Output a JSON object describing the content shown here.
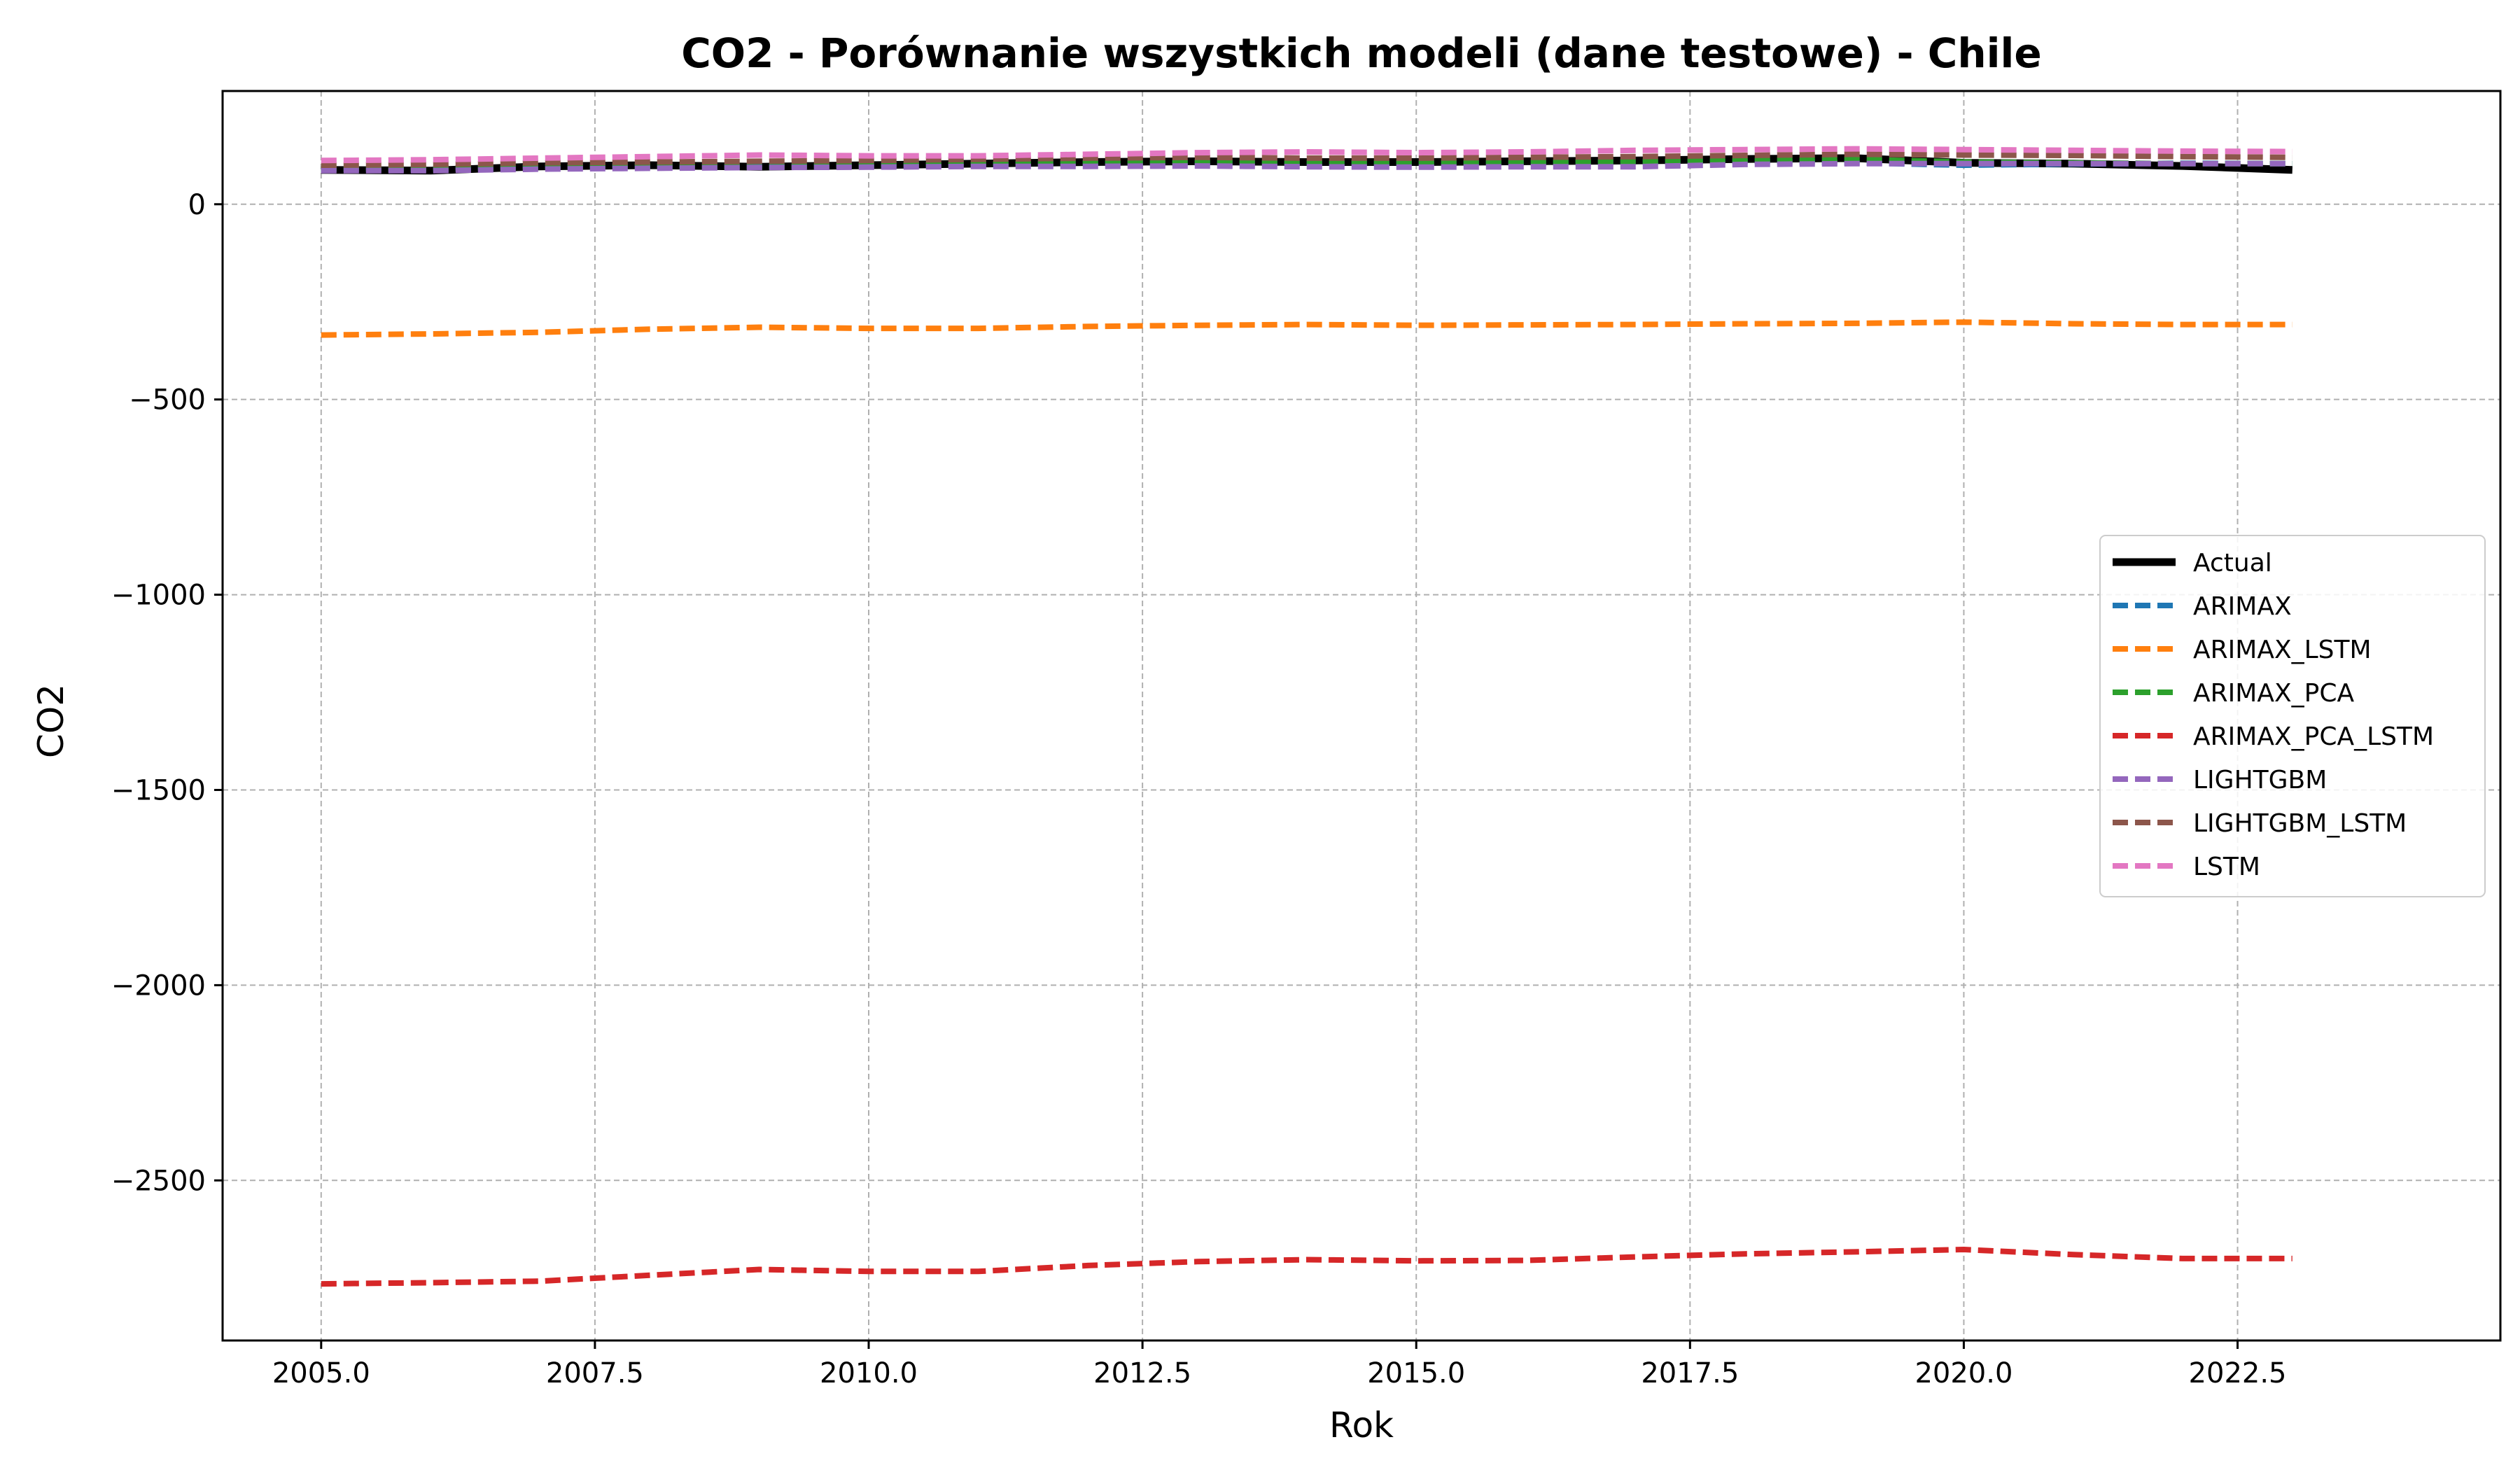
{
  "chart_data": {
    "type": "line",
    "title": "CO2 - Porównanie wszystkich modeli (dane testowe) - Chile",
    "xlabel": "Rok",
    "ylabel": "CO2",
    "xlim": [
      2004.1,
      2024.9
    ],
    "ylim": [
      -2910,
      290
    ],
    "xticks": [
      2005.0,
      2007.5,
      2010.0,
      2012.5,
      2015.0,
      2017.5,
      2020.0,
      2022.5
    ],
    "xtick_labels": [
      "2005.0",
      "2007.5",
      "2010.0",
      "2012.5",
      "2015.0",
      "2017.5",
      "2020.0",
      "2022.5"
    ],
    "yticks": [
      0,
      -500,
      -1000,
      -1500,
      -2000,
      -2500
    ],
    "ytick_labels": [
      "0",
      "−500",
      "−1000",
      "−1500",
      "−2000",
      "−2500"
    ],
    "grid": true,
    "legend_position": "center-right",
    "x": [
      2005,
      2006,
      2007,
      2008,
      2009,
      2010,
      2011,
      2012,
      2013,
      2014,
      2015,
      2016,
      2017,
      2018,
      2019,
      2020,
      2021,
      2022,
      2023
    ],
    "series": [
      {
        "name": "Actual",
        "color": "#000000",
        "style": "solid",
        "width": 11,
        "values": [
          88,
          86,
          97,
          100,
          96,
          100,
          104,
          108,
          110,
          108,
          108,
          110,
          112,
          116,
          118,
          106,
          104,
          98,
          88
        ]
      },
      {
        "name": "ARIMAX",
        "color": "#1f77b4",
        "style": "dashed",
        "width": 8,
        "values": [
          90,
          89,
          96,
          98,
          97,
          99,
          102,
          105,
          106,
          105,
          105,
          106,
          108,
          110,
          106,
          100,
          103,
          105,
          104
        ]
      },
      {
        "name": "ARIMAX_LSTM",
        "color": "#ff7f0e",
        "style": "dashed",
        "width": 8,
        "values": [
          -335,
          -332,
          -328,
          -320,
          -315,
          -318,
          -318,
          -313,
          -310,
          -308,
          -310,
          -309,
          -308,
          -306,
          -305,
          -302,
          -306,
          -308,
          -308
        ]
      },
      {
        "name": "ARIMAX_PCA",
        "color": "#2ca02c",
        "style": "dashed",
        "width": 8,
        "values": [
          90,
          92,
          96,
          98,
          95,
          100,
          103,
          106,
          107,
          106,
          106,
          107,
          109,
          112,
          115,
          108,
          106,
          104,
          104
        ]
      },
      {
        "name": "ARIMAX_PCA_LSTM",
        "color": "#d62728",
        "style": "dashed",
        "width": 8,
        "values": [
          -2765,
          -2762,
          -2758,
          -2743,
          -2728,
          -2733,
          -2733,
          -2718,
          -2708,
          -2703,
          -2706,
          -2705,
          -2696,
          -2688,
          -2683,
          -2677,
          -2690,
          -2700,
          -2700
        ]
      },
      {
        "name": "LIGHTGBM",
        "color": "#9467bd",
        "style": "dashed",
        "width": 8,
        "values": [
          86,
          86,
          90,
          92,
          94,
          95,
          97,
          97,
          98,
          96,
          95,
          96,
          96,
          102,
          104,
          104,
          104,
          104,
          104
        ]
      },
      {
        "name": "LIGHTGBM_LSTM",
        "color": "#8c564b",
        "style": "dashed",
        "width": 8,
        "values": [
          100,
          102,
          106,
          108,
          110,
          112,
          115,
          118,
          120,
          118,
          118,
          120,
          122,
          125,
          128,
          126,
          125,
          122,
          120
        ]
      },
      {
        "name": "LSTM",
        "color": "#e377c2",
        "style": "dashed",
        "width": 8,
        "values": [
          112,
          114,
          118,
          122,
          126,
          124,
          124,
          128,
          132,
          134,
          132,
          134,
          138,
          140,
          142,
          140,
          138,
          136,
          135
        ]
      }
    ]
  }
}
